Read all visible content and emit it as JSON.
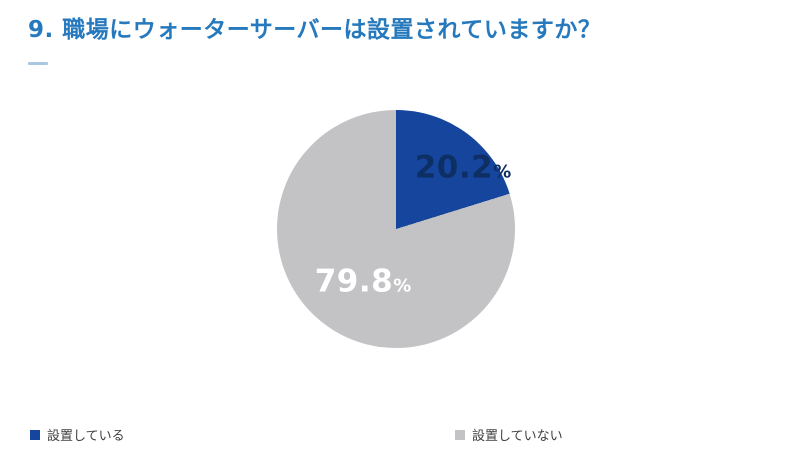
{
  "page": {
    "background": "#ffffff"
  },
  "header": {
    "title": "9. 職場にウォーターサーバーは設置されていますか？",
    "title_color": "#2679bd",
    "underline_color": "#a9c7e2"
  },
  "chart_data": {
    "type": "pie",
    "title": "9. 職場にウォーターサーバーは設置されていますか？",
    "categories": [
      "設置している",
      "設置していない"
    ],
    "values": [
      20.2,
      79.8
    ],
    "slices": [
      {
        "label": "設置している",
        "value": 20.2,
        "display": "20.2",
        "unit": "%",
        "color": "#15459c",
        "label_color": "#0e2f63"
      },
      {
        "label": "設置していない",
        "value": 79.8,
        "display": "79.8",
        "unit": "%",
        "color": "#c3c3c5",
        "label_color": "#ffffff"
      }
    ],
    "start_angle_deg": 0,
    "direction": "clockwise",
    "legend_position": "bottom"
  },
  "legend": {
    "items": [
      {
        "label": "設置している",
        "color": "#15459c"
      },
      {
        "label": "設置していない",
        "color": "#c3c3c5"
      }
    ]
  }
}
